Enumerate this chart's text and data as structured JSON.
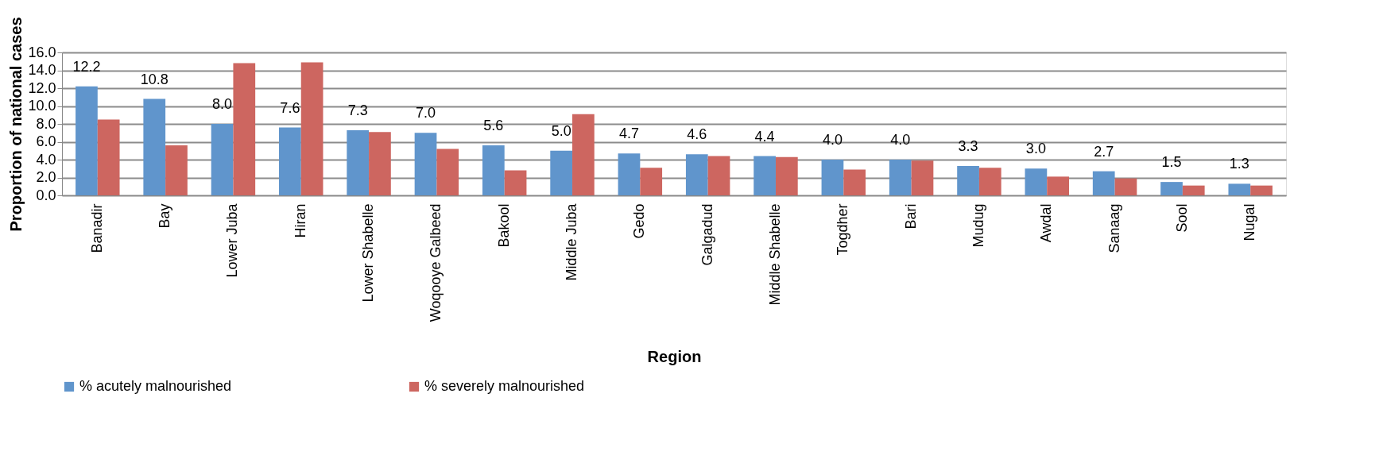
{
  "chart_data": {
    "type": "bar",
    "xlabel": "Region",
    "ylabel": "Proportion of national cases",
    "categories": [
      "Banadir",
      "Bay",
      "Lower Juba",
      "Hiran",
      "Lower Shabelle",
      "Woqooye Galbeed",
      "Bakool",
      "Middle Juba",
      "Gedo",
      "Galgadud",
      "Middle Shabelle",
      "Togdher",
      "Bari",
      "Mudug",
      "Awdal",
      "Sanaag",
      "Sool",
      "Nugal"
    ],
    "series": [
      {
        "name": "% acutely malnourished",
        "color": "#6095cc",
        "values": [
          12.2,
          10.8,
          8.0,
          7.6,
          7.3,
          7.0,
          5.6,
          5.0,
          4.7,
          4.6,
          4.4,
          4.0,
          4.0,
          3.3,
          3.0,
          2.7,
          1.5,
          1.3
        ],
        "value_labels": [
          "12.2",
          "10.8",
          "8.0",
          "7.6",
          "7.3",
          "7.0",
          "5.6",
          "5.0",
          "4.7",
          "4.6",
          "4.4",
          "4.0",
          "4.0",
          "3.3",
          "3.0",
          "2.7",
          "1.5",
          "1.3"
        ]
      },
      {
        "name": "% severely malnourished",
        "color": "#cd6660",
        "values": [
          8.5,
          5.6,
          14.8,
          14.9,
          7.1,
          5.2,
          2.8,
          9.1,
          3.1,
          4.4,
          4.3,
          2.9,
          3.9,
          3.1,
          2.1,
          1.9,
          1.1,
          1.1
        ]
      }
    ],
    "ylim": [
      0,
      16
    ],
    "yticks": [
      {
        "value": 0,
        "label": "0.0"
      },
      {
        "value": 2,
        "label": "2.0"
      },
      {
        "value": 4,
        "label": "4.0"
      },
      {
        "value": 6,
        "label": "6.0"
      },
      {
        "value": 8,
        "label": "8.0"
      },
      {
        "value": 10,
        "label": "10.0"
      },
      {
        "value": 12,
        "label": "12.0"
      },
      {
        "value": 14,
        "label": "14.0"
      },
      {
        "value": 16,
        "label": "16.0"
      }
    ],
    "grid": "y",
    "legend": "bottom"
  }
}
